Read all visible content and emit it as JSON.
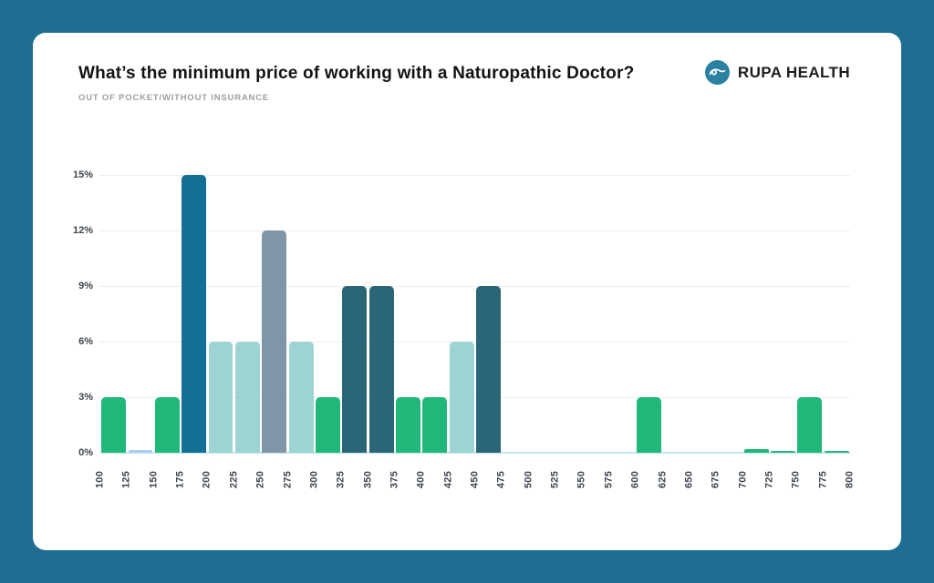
{
  "page": {
    "background_color": "#1d6e91",
    "card_color": "#ffffff"
  },
  "header": {
    "title": "What’s the minimum price of working with a Naturopathic Doctor?",
    "subtitle": "OUT OF POCKET/WITHOUT INSURANCE",
    "logo": {
      "text": "RUPA HEALTH",
      "icon": "rupa-wave-icon",
      "icon_color": "#2b81a1",
      "text_color": "#1d1d1f"
    }
  },
  "chart_data": {
    "type": "bar",
    "title": "What’s the minimum price of working with a Naturopathic Doctor?",
    "subtitle": "OUT OF POCKET/WITHOUT INSURANCE",
    "xlabel": "",
    "ylabel": "",
    "x_tick_labels": [
      "100",
      "125",
      "150",
      "175",
      "200",
      "225",
      "250",
      "275",
      "300",
      "325",
      "350",
      "375",
      "400",
      "425",
      "450",
      "475",
      "500",
      "525",
      "550",
      "575",
      "600",
      "625",
      "650",
      "675",
      "700",
      "725",
      "750",
      "775",
      "800"
    ],
    "y_tick_labels": [
      "0%",
      "3%",
      "6%",
      "9%",
      "12%",
      "15%"
    ],
    "y_tick_values": [
      0,
      3,
      6,
      9,
      12,
      15
    ],
    "ylim": [
      0,
      15
    ],
    "grid": true,
    "legend": "none",
    "palette": {
      "green": "#20b879",
      "blue": "#136f96",
      "light_teal": "#9ed3d4",
      "gray_blue": "#8095a5",
      "slate": "#2b6578",
      "light_blue": "#a6cdf2",
      "gridline": "#e9eef7",
      "axis_baseline": "#c4e6f0",
      "tick_text": "#3f454d"
    },
    "bins": [
      {
        "bin_start": 100,
        "bin_end": 125,
        "value_pct": 3,
        "color": "#20b879"
      },
      {
        "bin_start": 125,
        "bin_end": 150,
        "value_pct": 0.15,
        "color": "#a6cdf2"
      },
      {
        "bin_start": 150,
        "bin_end": 175,
        "value_pct": 3,
        "color": "#20b879"
      },
      {
        "bin_start": 175,
        "bin_end": 200,
        "value_pct": 15,
        "color": "#136f96"
      },
      {
        "bin_start": 200,
        "bin_end": 225,
        "value_pct": 6,
        "color": "#9ed3d4"
      },
      {
        "bin_start": 225,
        "bin_end": 250,
        "value_pct": 6,
        "color": "#9ed3d4"
      },
      {
        "bin_start": 250,
        "bin_end": 275,
        "value_pct": 12,
        "color": "#8095a5"
      },
      {
        "bin_start": 275,
        "bin_end": 300,
        "value_pct": 6,
        "color": "#9ed3d4"
      },
      {
        "bin_start": 300,
        "bin_end": 325,
        "value_pct": 3,
        "color": "#20b879"
      },
      {
        "bin_start": 325,
        "bin_end": 350,
        "value_pct": 9,
        "color": "#2b6578"
      },
      {
        "bin_start": 350,
        "bin_end": 375,
        "value_pct": 9,
        "color": "#2b6578"
      },
      {
        "bin_start": 375,
        "bin_end": 400,
        "value_pct": 3,
        "color": "#20b879"
      },
      {
        "bin_start": 400,
        "bin_end": 425,
        "value_pct": 3,
        "color": "#20b879"
      },
      {
        "bin_start": 425,
        "bin_end": 450,
        "value_pct": 6,
        "color": "#9ed3d4"
      },
      {
        "bin_start": 450,
        "bin_end": 475,
        "value_pct": 9,
        "color": "#2b6578"
      },
      {
        "bin_start": 475,
        "bin_end": 500,
        "value_pct": 0,
        "color": null
      },
      {
        "bin_start": 500,
        "bin_end": 525,
        "value_pct": 0,
        "color": null
      },
      {
        "bin_start": 525,
        "bin_end": 550,
        "value_pct": 0,
        "color": null
      },
      {
        "bin_start": 550,
        "bin_end": 575,
        "value_pct": 0,
        "color": null
      },
      {
        "bin_start": 575,
        "bin_end": 600,
        "value_pct": 0,
        "color": null
      },
      {
        "bin_start": 600,
        "bin_end": 625,
        "value_pct": 3,
        "color": "#20b879"
      },
      {
        "bin_start": 625,
        "bin_end": 650,
        "value_pct": 0,
        "color": null
      },
      {
        "bin_start": 650,
        "bin_end": 675,
        "value_pct": 0,
        "color": null
      },
      {
        "bin_start": 675,
        "bin_end": 700,
        "value_pct": 0,
        "color": null
      },
      {
        "bin_start": 700,
        "bin_end": 725,
        "value_pct": 0.2,
        "color": "#20b879"
      },
      {
        "bin_start": 725,
        "bin_end": 750,
        "value_pct": 0.1,
        "color": "#20b879"
      },
      {
        "bin_start": 750,
        "bin_end": 775,
        "value_pct": 3,
        "color": "#20b879"
      },
      {
        "bin_start": 775,
        "bin_end": 800,
        "value_pct": 0.1,
        "color": "#20b879"
      }
    ]
  }
}
